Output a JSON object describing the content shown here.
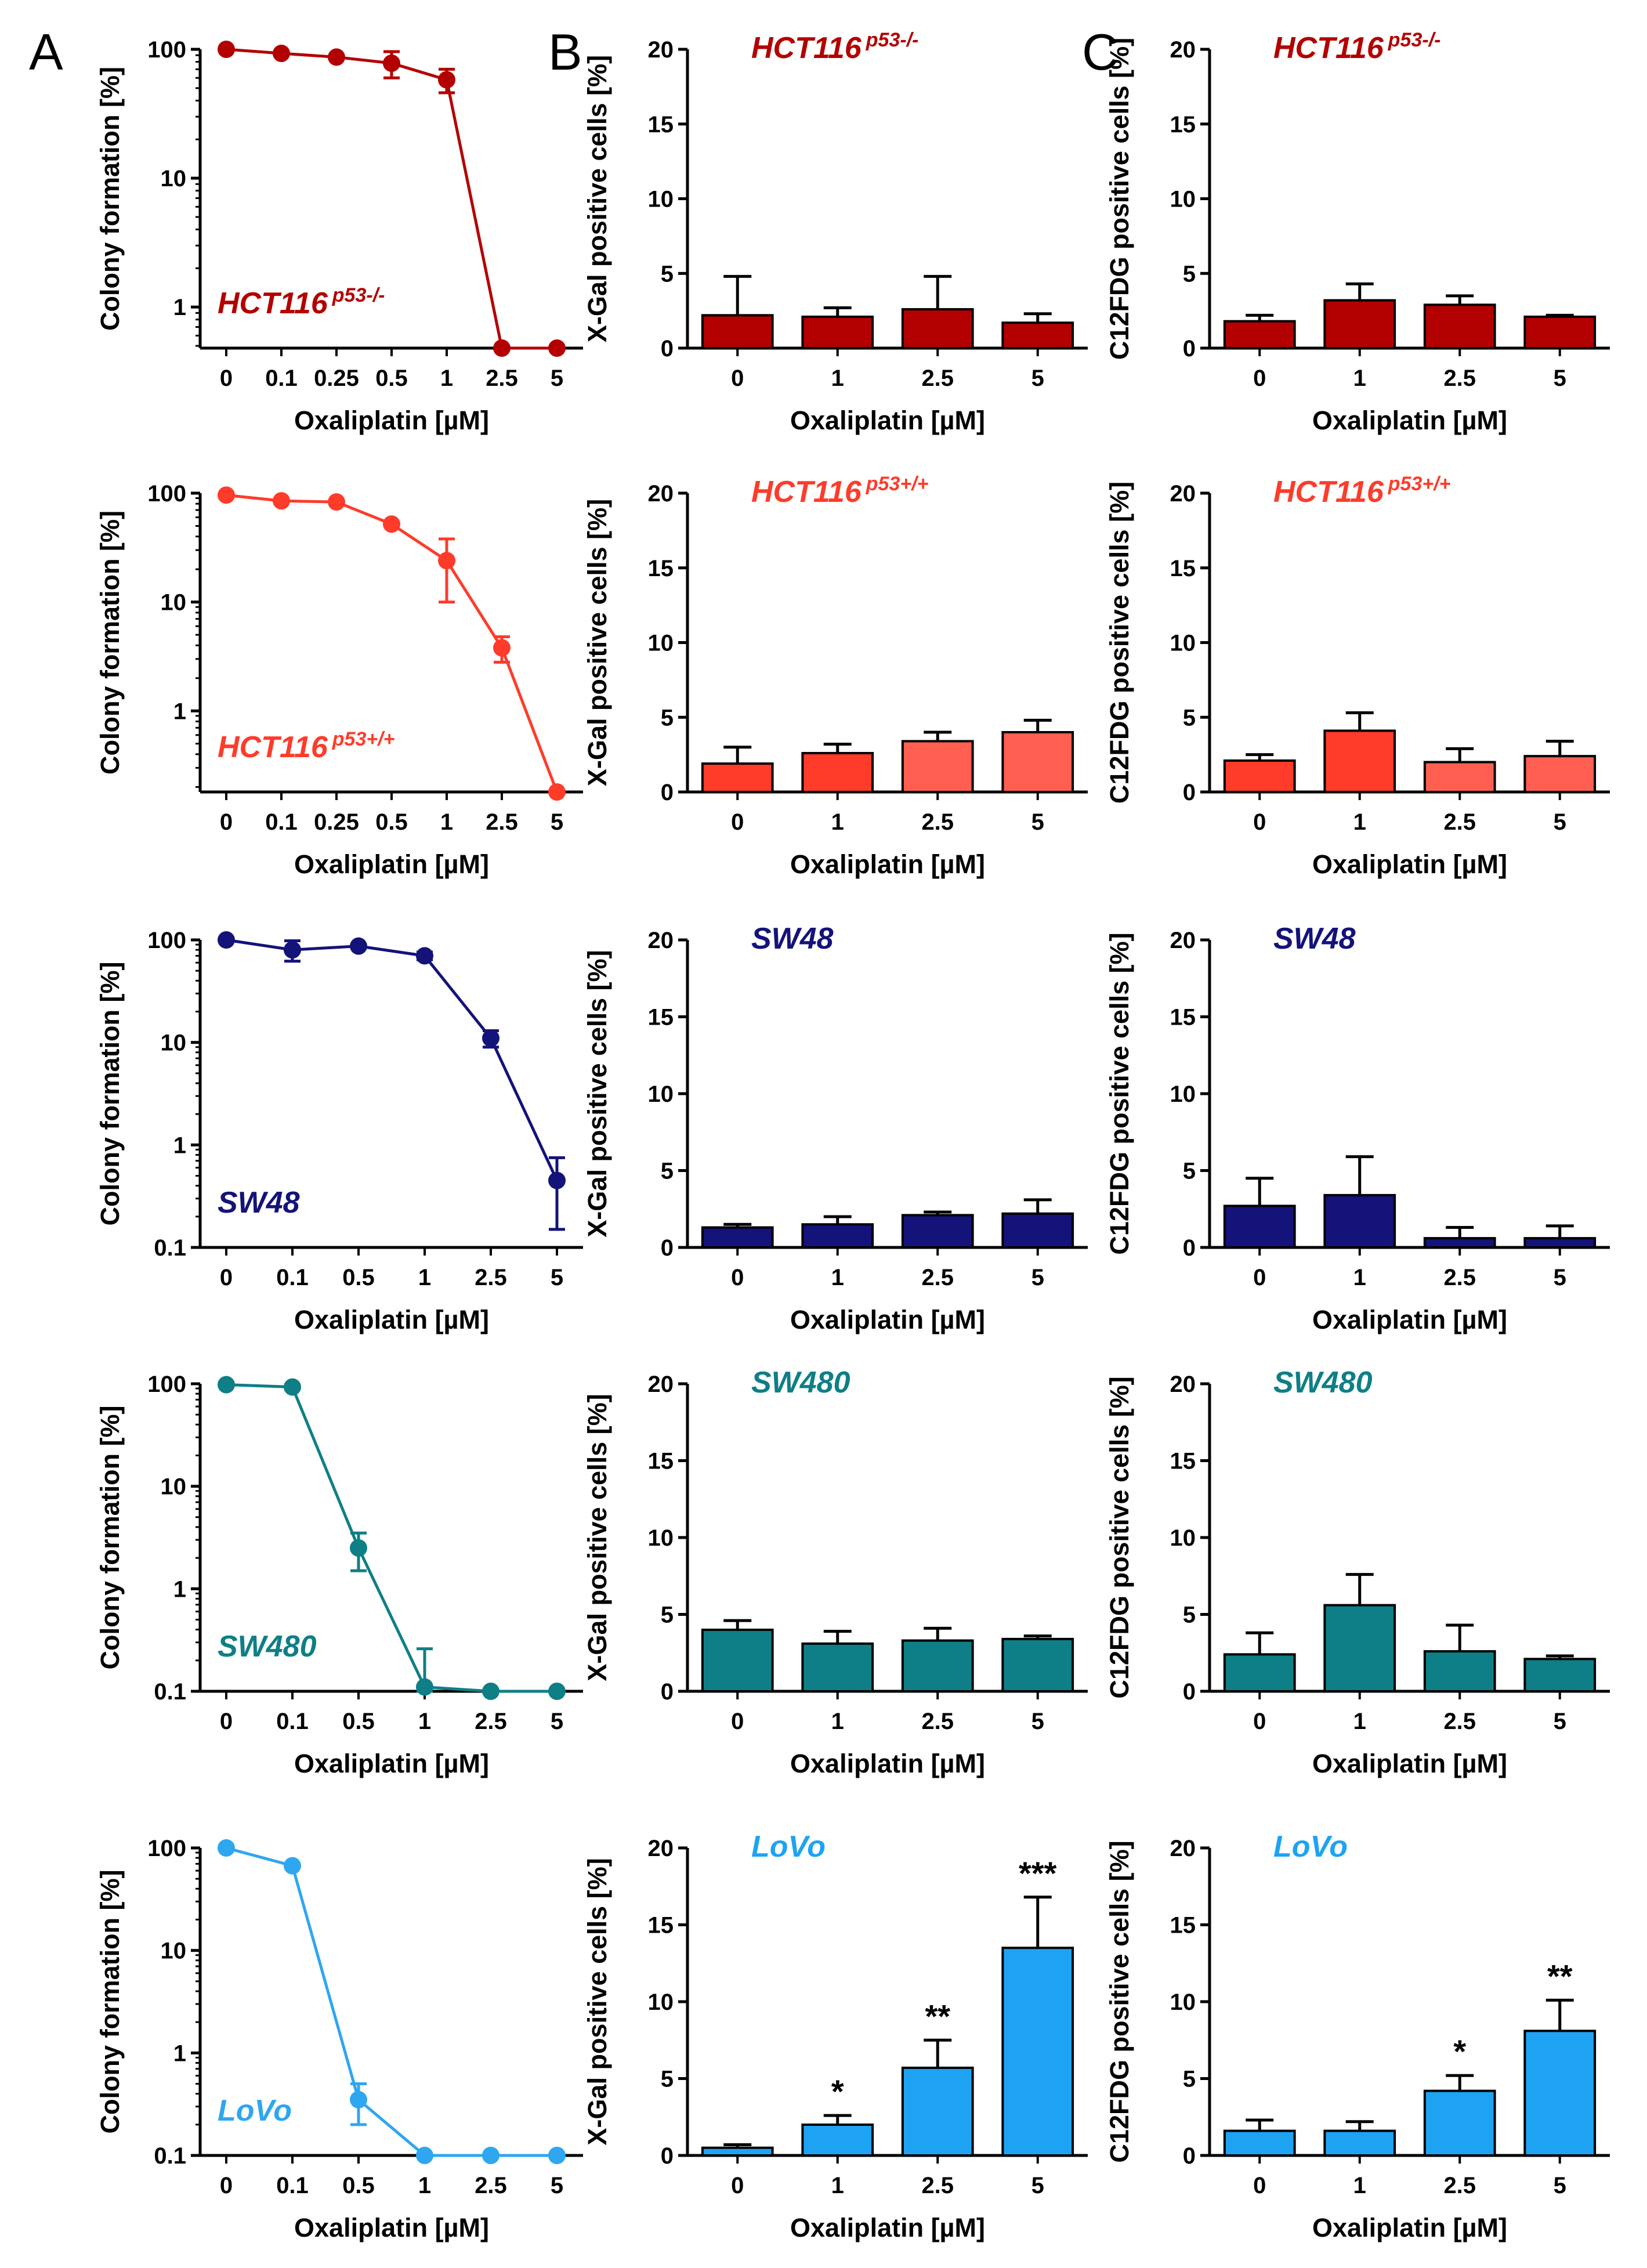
{
  "panel_letters": [
    "A",
    "B",
    "C"
  ],
  "chart_data": [
    {
      "id": "A1",
      "panel": "A",
      "type": "line",
      "scale": "log",
      "cell_line": "HCT116",
      "superscript": "p53-/-",
      "color": "#B30000",
      "categories": [
        "0",
        "0.1",
        "0.25",
        "0.5",
        "1",
        "2.5",
        "5"
      ],
      "values": [
        100,
        93,
        87,
        78,
        58,
        0.48,
        0.48
      ],
      "errors": [
        0,
        0,
        0,
        18,
        12,
        0,
        0
      ],
      "ylim": [
        0.48,
        100
      ],
      "yticks": [
        {
          "v": 100,
          "l": "100"
        },
        {
          "v": 10,
          "l": "10"
        },
        {
          "v": 1,
          "l": "1"
        }
      ],
      "xlabel": "Oxaliplatin [µM]",
      "ylabel": "Colony formation [%]"
    },
    {
      "id": "B1",
      "panel": "B",
      "type": "bar",
      "cell_line": "HCT116",
      "superscript": "p53-/-",
      "color": "#B30000",
      "categories": [
        "0",
        "1",
        "2.5",
        "5"
      ],
      "values": [
        2.2,
        2.1,
        2.6,
        1.7
      ],
      "errors": [
        2.6,
        0.6,
        2.2,
        0.6
      ],
      "stars": [
        "",
        "",
        "",
        ""
      ],
      "ylim": [
        0,
        20
      ],
      "yticks": [
        0,
        5,
        10,
        15,
        20
      ],
      "xlabel": "Oxaliplatin [µM]",
      "ylabel": "X-Gal positive cells [%]"
    },
    {
      "id": "C1",
      "panel": "C",
      "type": "bar",
      "cell_line": "HCT116",
      "superscript": "p53-/-",
      "color": "#B30000",
      "categories": [
        "0",
        "1",
        "2.5",
        "5"
      ],
      "values": [
        1.8,
        3.2,
        2.9,
        2.1
      ],
      "errors": [
        0.4,
        1.1,
        0.6,
        0.1
      ],
      "stars": [
        "",
        "",
        "",
        ""
      ],
      "ylim": [
        0,
        20
      ],
      "yticks": [
        0,
        5,
        10,
        15,
        20
      ],
      "xlabel": "Oxaliplatin [µM]",
      "ylabel": "C12FDG positive cells [%]"
    },
    {
      "id": "A2",
      "panel": "A",
      "type": "line",
      "scale": "log",
      "cell_line": "HCT116",
      "superscript": "p53+/+",
      "color": "#FF3B2A",
      "categories": [
        "0",
        "0.1",
        "0.25",
        "0.5",
        "1",
        "2.5",
        "5"
      ],
      "values": [
        96,
        85,
        83,
        52,
        24,
        3.8,
        0.18
      ],
      "errors": [
        0,
        0,
        0,
        0,
        14,
        1,
        0
      ],
      "ylim": [
        0.18,
        100
      ],
      "yticks": [
        {
          "v": 100,
          "l": "100"
        },
        {
          "v": 10,
          "l": "10"
        },
        {
          "v": 1,
          "l": "1"
        }
      ],
      "xlabel": "Oxaliplatin [µM]",
      "ylabel": "Colony formation [%]"
    },
    {
      "id": "B2",
      "panel": "B",
      "type": "bar",
      "cell_line": "HCT116",
      "superscript": "p53+/+",
      "color": "#FF3B2A",
      "categories": [
        "0",
        "1",
        "2.5",
        "5"
      ],
      "values": [
        1.9,
        2.6,
        3.4,
        4.0
      ],
      "errors": [
        1.1,
        0.6,
        0.6,
        0.8
      ],
      "stars": [
        "",
        "",
        "",
        ""
      ],
      "ylim": [
        0,
        20
      ],
      "yticks": [
        0,
        5,
        10,
        15,
        20
      ],
      "xlabel": "Oxaliplatin [µM]",
      "ylabel": "X-Gal positive cells [%]"
    },
    {
      "id": "C2",
      "panel": "C",
      "type": "bar",
      "cell_line": "HCT116",
      "superscript": "p53+/+",
      "color": "#FF3B2A",
      "categories": [
        "0",
        "1",
        "2.5",
        "5"
      ],
      "values": [
        2.1,
        4.1,
        2.0,
        2.4
      ],
      "errors": [
        0.4,
        1.2,
        0.9,
        1.0
      ],
      "stars": [
        "",
        "",
        "",
        ""
      ],
      "ylim": [
        0,
        20
      ],
      "yticks": [
        0,
        5,
        10,
        15,
        20
      ],
      "xlabel": "Oxaliplatin [µM]",
      "ylabel": "C12FDG positive cells [%]"
    },
    {
      "id": "A3",
      "panel": "A",
      "type": "line",
      "scale": "log",
      "cell_line": "SW48",
      "superscript": "",
      "color": "#14137A",
      "categories": [
        "0",
        "0.1",
        "0.5",
        "1",
        "2.5",
        "5"
      ],
      "values": [
        100,
        80,
        87,
        70,
        11,
        0.45
      ],
      "errors": [
        0,
        18,
        0,
        6,
        2,
        0.3
      ],
      "ylim": [
        0.1,
        100
      ],
      "yticks": [
        {
          "v": 100,
          "l": "100"
        },
        {
          "v": 10,
          "l": "10"
        },
        {
          "v": 1,
          "l": "1"
        },
        {
          "v": 0.1,
          "l": "0.1"
        }
      ],
      "xlabel": "Oxaliplatin [µM]",
      "ylabel": "Colony formation [%]"
    },
    {
      "id": "B3",
      "panel": "B",
      "type": "bar",
      "cell_line": "SW48",
      "superscript": "",
      "color": "#14137A",
      "categories": [
        "0",
        "1",
        "2.5",
        "5"
      ],
      "values": [
        1.3,
        1.5,
        2.1,
        2.2
      ],
      "errors": [
        0.2,
        0.5,
        0.2,
        0.9
      ],
      "stars": [
        "",
        "",
        "",
        ""
      ],
      "ylim": [
        0,
        20
      ],
      "yticks": [
        0,
        5,
        10,
        15,
        20
      ],
      "xlabel": "Oxaliplatin [µM]",
      "ylabel": "X-Gal positive cells [%]"
    },
    {
      "id": "C3",
      "panel": "C",
      "type": "bar",
      "cell_line": "SW48",
      "superscript": "",
      "color": "#14137A",
      "categories": [
        "0",
        "1",
        "2.5",
        "5"
      ],
      "values": [
        2.7,
        3.4,
        0.6,
        0.6
      ],
      "errors": [
        1.8,
        2.5,
        0.7,
        0.8
      ],
      "stars": [
        "",
        "",
        "",
        ""
      ],
      "ylim": [
        0,
        20
      ],
      "yticks": [
        0,
        5,
        10,
        15,
        20
      ],
      "xlabel": "Oxaliplatin [µM]",
      "ylabel": "C12FDG positive cells [%]"
    },
    {
      "id": "A4",
      "panel": "A",
      "type": "line",
      "scale": "log",
      "cell_line": "SW480",
      "superscript": "",
      "color": "#0E7F86",
      "categories": [
        "0",
        "0.1",
        "0.5",
        "1",
        "2.5",
        "5"
      ],
      "values": [
        98,
        93,
        2.5,
        0.11,
        0.1,
        0.1
      ],
      "errors": [
        0,
        5,
        1,
        0.15,
        0,
        0
      ],
      "ylim": [
        0.1,
        100
      ],
      "yticks": [
        {
          "v": 100,
          "l": "100"
        },
        {
          "v": 10,
          "l": "10"
        },
        {
          "v": 1,
          "l": "1"
        },
        {
          "v": 0.1,
          "l": "0.1"
        }
      ],
      "xlabel": "Oxaliplatin [µM]",
      "ylabel": "Colony formation [%]"
    },
    {
      "id": "B4",
      "panel": "B",
      "type": "bar",
      "cell_line": "SW480",
      "superscript": "",
      "color": "#0E7F86",
      "categories": [
        "0",
        "1",
        "2.5",
        "5"
      ],
      "values": [
        4.0,
        3.1,
        3.3,
        3.4
      ],
      "errors": [
        0.6,
        0.8,
        0.8,
        0.2
      ],
      "stars": [
        "",
        "",
        "",
        ""
      ],
      "ylim": [
        0,
        20
      ],
      "yticks": [
        0,
        5,
        10,
        15,
        20
      ],
      "xlabel": "Oxaliplatin [µM]",
      "ylabel": "X-Gal positive cells [%]"
    },
    {
      "id": "C4",
      "panel": "C",
      "type": "bar",
      "cell_line": "SW480",
      "superscript": "",
      "color": "#0E7F86",
      "categories": [
        "0",
        "1",
        "2.5",
        "5"
      ],
      "values": [
        2.4,
        5.6,
        2.6,
        2.1
      ],
      "errors": [
        1.4,
        2.0,
        1.7,
        0.2
      ],
      "stars": [
        "",
        "",
        "",
        ""
      ],
      "ylim": [
        0,
        20
      ],
      "yticks": [
        0,
        5,
        10,
        15,
        20
      ],
      "xlabel": "Oxaliplatin [µM]",
      "ylabel": "C12FDG positive cells [%]"
    },
    {
      "id": "A5",
      "panel": "A",
      "type": "line",
      "scale": "log",
      "cell_line": "LoVo",
      "superscript": "",
      "color": "#2FA6F0",
      "categories": [
        "0",
        "0.1",
        "0.5",
        "1",
        "2.5",
        "5"
      ],
      "values": [
        100,
        67,
        0.35,
        0.1,
        0.1,
        0.1
      ],
      "errors": [
        0,
        0,
        0.15,
        0,
        0,
        0
      ],
      "ylim": [
        0.1,
        100
      ],
      "yticks": [
        {
          "v": 100,
          "l": "100"
        },
        {
          "v": 10,
          "l": "10"
        },
        {
          "v": 1,
          "l": "1"
        },
        {
          "v": 0.1,
          "l": "0.1"
        }
      ],
      "xlabel": "Oxaliplatin [µM]",
      "ylabel": "Colony formation [%]"
    },
    {
      "id": "B5",
      "panel": "B",
      "type": "bar",
      "cell_line": "LoVo",
      "superscript": "",
      "color": "#1EA3F3",
      "categories": [
        "0",
        "1",
        "2.5",
        "5"
      ],
      "values": [
        0.5,
        2.0,
        5.7,
        13.5
      ],
      "errors": [
        0.2,
        0.6,
        1.8,
        3.3
      ],
      "stars": [
        "",
        "*",
        "**",
        "***"
      ],
      "ylim": [
        0,
        20
      ],
      "yticks": [
        0,
        5,
        10,
        15,
        20
      ],
      "xlabel": "Oxaliplatin [µM]",
      "ylabel": "X-Gal positive cells [%]"
    },
    {
      "id": "C5",
      "panel": "C",
      "type": "bar",
      "cell_line": "LoVo",
      "superscript": "",
      "color": "#1EA3F3",
      "categories": [
        "0",
        "1",
        "2.5",
        "5"
      ],
      "values": [
        1.6,
        1.6,
        4.2,
        8.1
      ],
      "errors": [
        0.7,
        0.6,
        1.0,
        2.0
      ],
      "stars": [
        "",
        "",
        "*",
        "**"
      ],
      "ylim": [
        0,
        20
      ],
      "yticks": [
        0,
        5,
        10,
        15,
        20
      ],
      "xlabel": "Oxaliplatin [µM]",
      "ylabel": "C12FDG positive cells [%]"
    }
  ]
}
